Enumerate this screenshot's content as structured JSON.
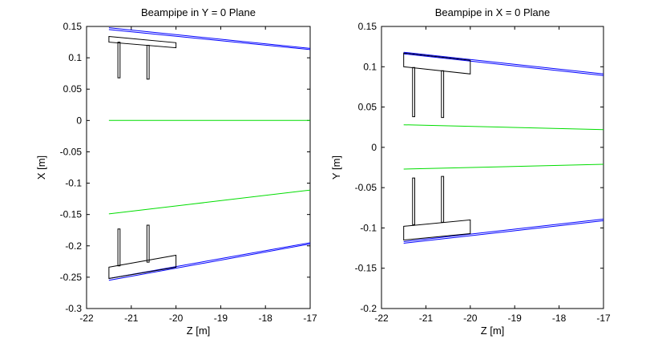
{
  "chart_data": [
    {
      "type": "line",
      "title": "Beampipe in Y = 0 Plane",
      "xlabel": "Z [m]",
      "ylabel": "X [m]",
      "xlim": [
        -22,
        -17
      ],
      "ylim": [
        -0.3,
        0.15
      ],
      "grid": false,
      "xticks": [
        -22,
        -21,
        -20,
        -19,
        -18,
        -17
      ],
      "xtick_labels": [
        "-22",
        "-21",
        "-20",
        "-19",
        "-18",
        "-17"
      ],
      "yticks": [
        0.15,
        0.1,
        0.05,
        0,
        -0.05,
        -0.1,
        -0.15,
        -0.2,
        -0.25,
        -0.3
      ],
      "ytick_labels": [
        "0.15",
        "0.1",
        "0.05",
        "0",
        "-0.05",
        "-0.1",
        "-0.15",
        "-0.2",
        "-0.25",
        "-0.3"
      ],
      "series": [
        {
          "color": "#0000ff",
          "x": [
            -21.5,
            -17
          ],
          "y": [
            0.148,
            0.115
          ]
        },
        {
          "color": "#0000ff",
          "x": [
            -21.5,
            -17
          ],
          "y": [
            0.145,
            0.113
          ]
        },
        {
          "color": "#0000ff",
          "x": [
            -21.5,
            -17
          ],
          "y": [
            -0.252,
            -0.195
          ]
        },
        {
          "color": "#0000ff",
          "x": [
            -21.5,
            -17
          ],
          "y": [
            -0.255,
            -0.197
          ]
        },
        {
          "color": "#00dd00",
          "x": [
            -21.5,
            -17
          ],
          "y": [
            0,
            0
          ]
        },
        {
          "color": "#00dd00",
          "x": [
            -21.5,
            -17
          ],
          "y": [
            -0.149,
            -0.111
          ]
        },
        {
          "color": "#000000",
          "closed": true,
          "x": [
            -21.5,
            -20,
            -20,
            -21.5
          ],
          "y": [
            0.134,
            0.124,
            0.116,
            0.125
          ]
        },
        {
          "color": "#000000",
          "closed": true,
          "x": [
            -21.3,
            -21.25,
            -21.25,
            -21.3
          ],
          "y": [
            0.125,
            0.125,
            0.068,
            0.068
          ]
        },
        {
          "color": "#000000",
          "closed": true,
          "x": [
            -20.65,
            -20.6,
            -20.6,
            -20.65
          ],
          "y": [
            0.12,
            0.12,
            0.066,
            0.066
          ]
        },
        {
          "color": "#000000",
          "closed": true,
          "x": [
            -21.5,
            -20,
            -20,
            -21.5
          ],
          "y": [
            -0.234,
            -0.215,
            -0.234,
            -0.252
          ]
        },
        {
          "color": "#000000",
          "closed": true,
          "x": [
            -21.3,
            -21.25,
            -21.25,
            -21.3
          ],
          "y": [
            -0.173,
            -0.173,
            -0.232,
            -0.232
          ]
        },
        {
          "color": "#000000",
          "closed": true,
          "x": [
            -20.65,
            -20.6,
            -20.6,
            -20.65
          ],
          "y": [
            -0.167,
            -0.167,
            -0.226,
            -0.226
          ]
        }
      ]
    },
    {
      "type": "line",
      "title": "Beampipe in X = 0 Plane",
      "xlabel": "Z [m]",
      "ylabel": "Y [m]",
      "xlim": [
        -22,
        -17
      ],
      "ylim": [
        -0.2,
        0.15
      ],
      "grid": false,
      "xticks": [
        -22,
        -21,
        -20,
        -19,
        -18,
        -17
      ],
      "xtick_labels": [
        "-22",
        "-21",
        "-20",
        "-19",
        "-18",
        "-17"
      ],
      "yticks": [
        0.15,
        0.1,
        0.05,
        0,
        -0.05,
        -0.1,
        -0.15,
        -0.2
      ],
      "ytick_labels": [
        "0.15",
        "0.1",
        "0.05",
        "0",
        "-0.05",
        "-0.1",
        "-0.15",
        "-0.2"
      ],
      "series": [
        {
          "color": "#0000ff",
          "x": [
            -21.5,
            -17
          ],
          "y": [
            0.118,
            0.091
          ]
        },
        {
          "color": "#0000ff",
          "x": [
            -21.5,
            -17
          ],
          "y": [
            0.116,
            0.089
          ]
        },
        {
          "color": "#0000ff",
          "x": [
            -21.5,
            -17
          ],
          "y": [
            -0.117,
            -0.089
          ]
        },
        {
          "color": "#0000ff",
          "x": [
            -21.5,
            -17
          ],
          "y": [
            -0.119,
            -0.091
          ]
        },
        {
          "color": "#00dd00",
          "x": [
            -21.5,
            -17
          ],
          "y": [
            0.028,
            0.022
          ]
        },
        {
          "color": "#00dd00",
          "x": [
            -21.5,
            -17
          ],
          "y": [
            -0.027,
            -0.021
          ]
        },
        {
          "color": "#000000",
          "closed": true,
          "x": [
            -21.5,
            -20,
            -20,
            -21.5
          ],
          "y": [
            0.117,
            0.108,
            0.091,
            0.1
          ]
        },
        {
          "color": "#000000",
          "closed": true,
          "x": [
            -21.3,
            -21.25,
            -21.25,
            -21.3
          ],
          "y": [
            0.099,
            0.099,
            0.038,
            0.038
          ]
        },
        {
          "color": "#000000",
          "closed": true,
          "x": [
            -20.65,
            -20.6,
            -20.6,
            -20.65
          ],
          "y": [
            0.095,
            0.095,
            0.037,
            0.037
          ]
        },
        {
          "color": "#000000",
          "closed": true,
          "x": [
            -21.5,
            -20,
            -20,
            -21.5
          ],
          "y": [
            -0.098,
            -0.09,
            -0.107,
            -0.115
          ]
        },
        {
          "color": "#000000",
          "closed": true,
          "x": [
            -21.3,
            -21.25,
            -21.25,
            -21.3
          ],
          "y": [
            -0.038,
            -0.038,
            -0.096,
            -0.096
          ]
        },
        {
          "color": "#000000",
          "closed": true,
          "x": [
            -20.65,
            -20.6,
            -20.6,
            -20.65
          ],
          "y": [
            -0.036,
            -0.036,
            -0.093,
            -0.093
          ]
        }
      ]
    }
  ]
}
